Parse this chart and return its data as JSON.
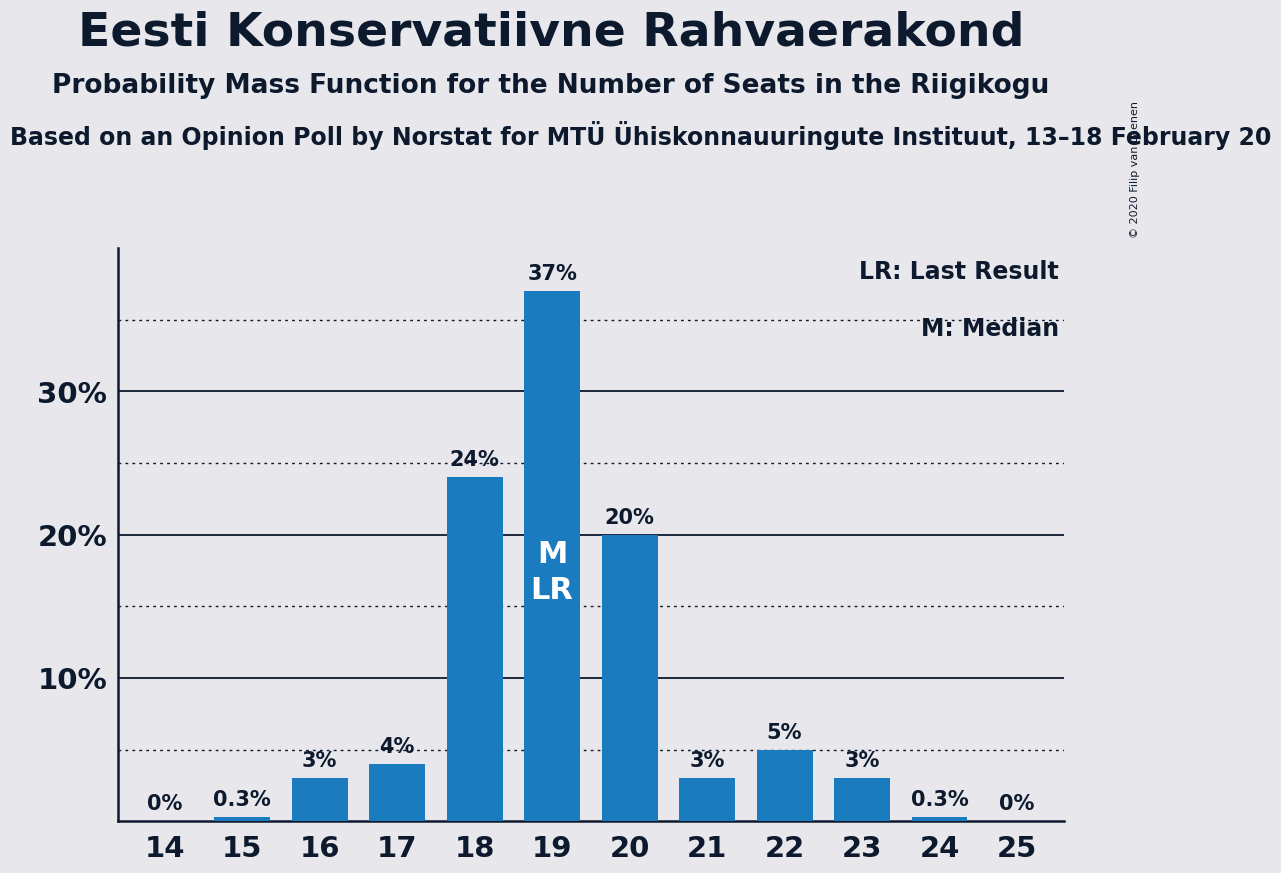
{
  "title": "Eesti Konservatiivne Rahvaerakond",
  "subtitle": "Probability Mass Function for the Number of Seats in the Riigikogu",
  "sub_subtitle": "Based on an Opinion Poll by Norstat for MTÜ Ühiskonnauuringute Instituut, 13–18 February 20",
  "copyright": "© 2020 Filip van Laenen",
  "categories": [
    14,
    15,
    16,
    17,
    18,
    19,
    20,
    21,
    22,
    23,
    24,
    25
  ],
  "values": [
    0.0,
    0.3,
    3.0,
    4.0,
    24.0,
    37.0,
    20.0,
    3.0,
    5.0,
    3.0,
    0.3,
    0.0
  ],
  "labels": [
    "0%",
    "0.3%",
    "3%",
    "4%",
    "24%",
    "37%",
    "20%",
    "3%",
    "5%",
    "3%",
    "0.3%",
    "0%"
  ],
  "bar_color": "#1a7bbf",
  "background_color": "#e8e8ec",
  "text_color": "#0d1a2e",
  "ylim": [
    0,
    40
  ],
  "solid_yticks": [
    10,
    20,
    30
  ],
  "dotted_yticks": [
    5,
    15,
    25,
    35
  ],
  "ytick_labels_positions": [
    10,
    20,
    30
  ],
  "ytick_labels_values": [
    "10%",
    "20%",
    "30%"
  ],
  "median_seat": 19,
  "lr_seat": 19,
  "legend_lr": "LR: Last Result",
  "legend_m": "M: Median",
  "title_fontsize": 34,
  "subtitle_fontsize": 19,
  "sub_subtitle_fontsize": 17,
  "bar_label_fontsize": 15,
  "axis_label_fontsize": 21,
  "legend_fontsize": 17,
  "ml_label_fontsize": 22
}
